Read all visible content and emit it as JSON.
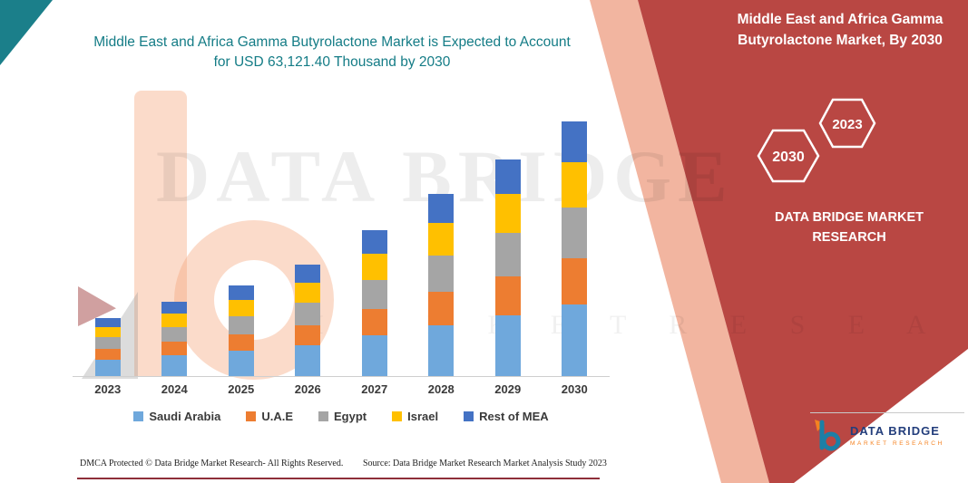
{
  "header": {
    "left_title": "Middle East and Africa Gamma Butyrolactone Market is Expected to Account for USD 63,121.40 Thousand by 2030"
  },
  "side_panel": {
    "title": "Middle East and Africa Gamma Butyrolactone Market, By 2030",
    "hexagon_back": "2023",
    "hexagon_front": "2030",
    "brand_text": "DATA BRIDGE MARKET RESEARCH",
    "panel_color": "#b94743",
    "band_color": "#f2b5a0",
    "corner_color": "#1b7f8a"
  },
  "watermark": {
    "line1": "DATA BRIDGE",
    "line2": "M A R K E T    R E S E A R C H"
  },
  "logo": {
    "title": "DATA BRIDGE",
    "subtitle": "MARKET RESEARCH"
  },
  "footer": {
    "dmca": "DMCA Protected © Data Bridge Market Research-  All Rights Reserved.",
    "source": "Source: Data Bridge Market Research  Market Analysis Study 2023"
  },
  "chart_data": {
    "type": "bar",
    "stacked": true,
    "title": "Middle East and Africa Gamma Butyrolactone Market is Expected to Account for USD 63,121.40 Thousand by 2030",
    "unit": "USD Thousand",
    "categories": [
      "2023",
      "2024",
      "2025",
      "2026",
      "2027",
      "2028",
      "2029",
      "2030"
    ],
    "series": [
      {
        "name": "Saudi Arabia",
        "color": "#6fa8dc",
        "values": [
          4000,
          5200,
          6300,
          7700,
          10200,
          12700,
          15100,
          17700
        ]
      },
      {
        "name": "U.A.E",
        "color": "#ed7d31",
        "values": [
          2600,
          3350,
          4100,
          5000,
          6600,
          8250,
          9800,
          11400
        ]
      },
      {
        "name": "Egypt",
        "color": "#a5a5a5",
        "values": [
          2900,
          3700,
          4550,
          5550,
          7300,
          9100,
          10850,
          12600
        ]
      },
      {
        "name": "Israel",
        "color": "#ffc000",
        "values": [
          2550,
          3300,
          4050,
          4950,
          6550,
          8150,
          9750,
          11350
        ]
      },
      {
        "name": "Rest of MEA",
        "color": "#4472c4",
        "values": [
          2250,
          2950,
          3600,
          4400,
          5750,
          7300,
          8600,
          10071.4
        ]
      }
    ],
    "totals": [
      14300,
      18500,
      22600,
      27600,
      36400,
      45500,
      54100,
      63121.4
    ],
    "final_year_total": 63121.4,
    "ylim": [
      0,
      63121.4
    ],
    "grid": false,
    "legend_position": "bottom",
    "axis_labels_visible": "x-only"
  }
}
